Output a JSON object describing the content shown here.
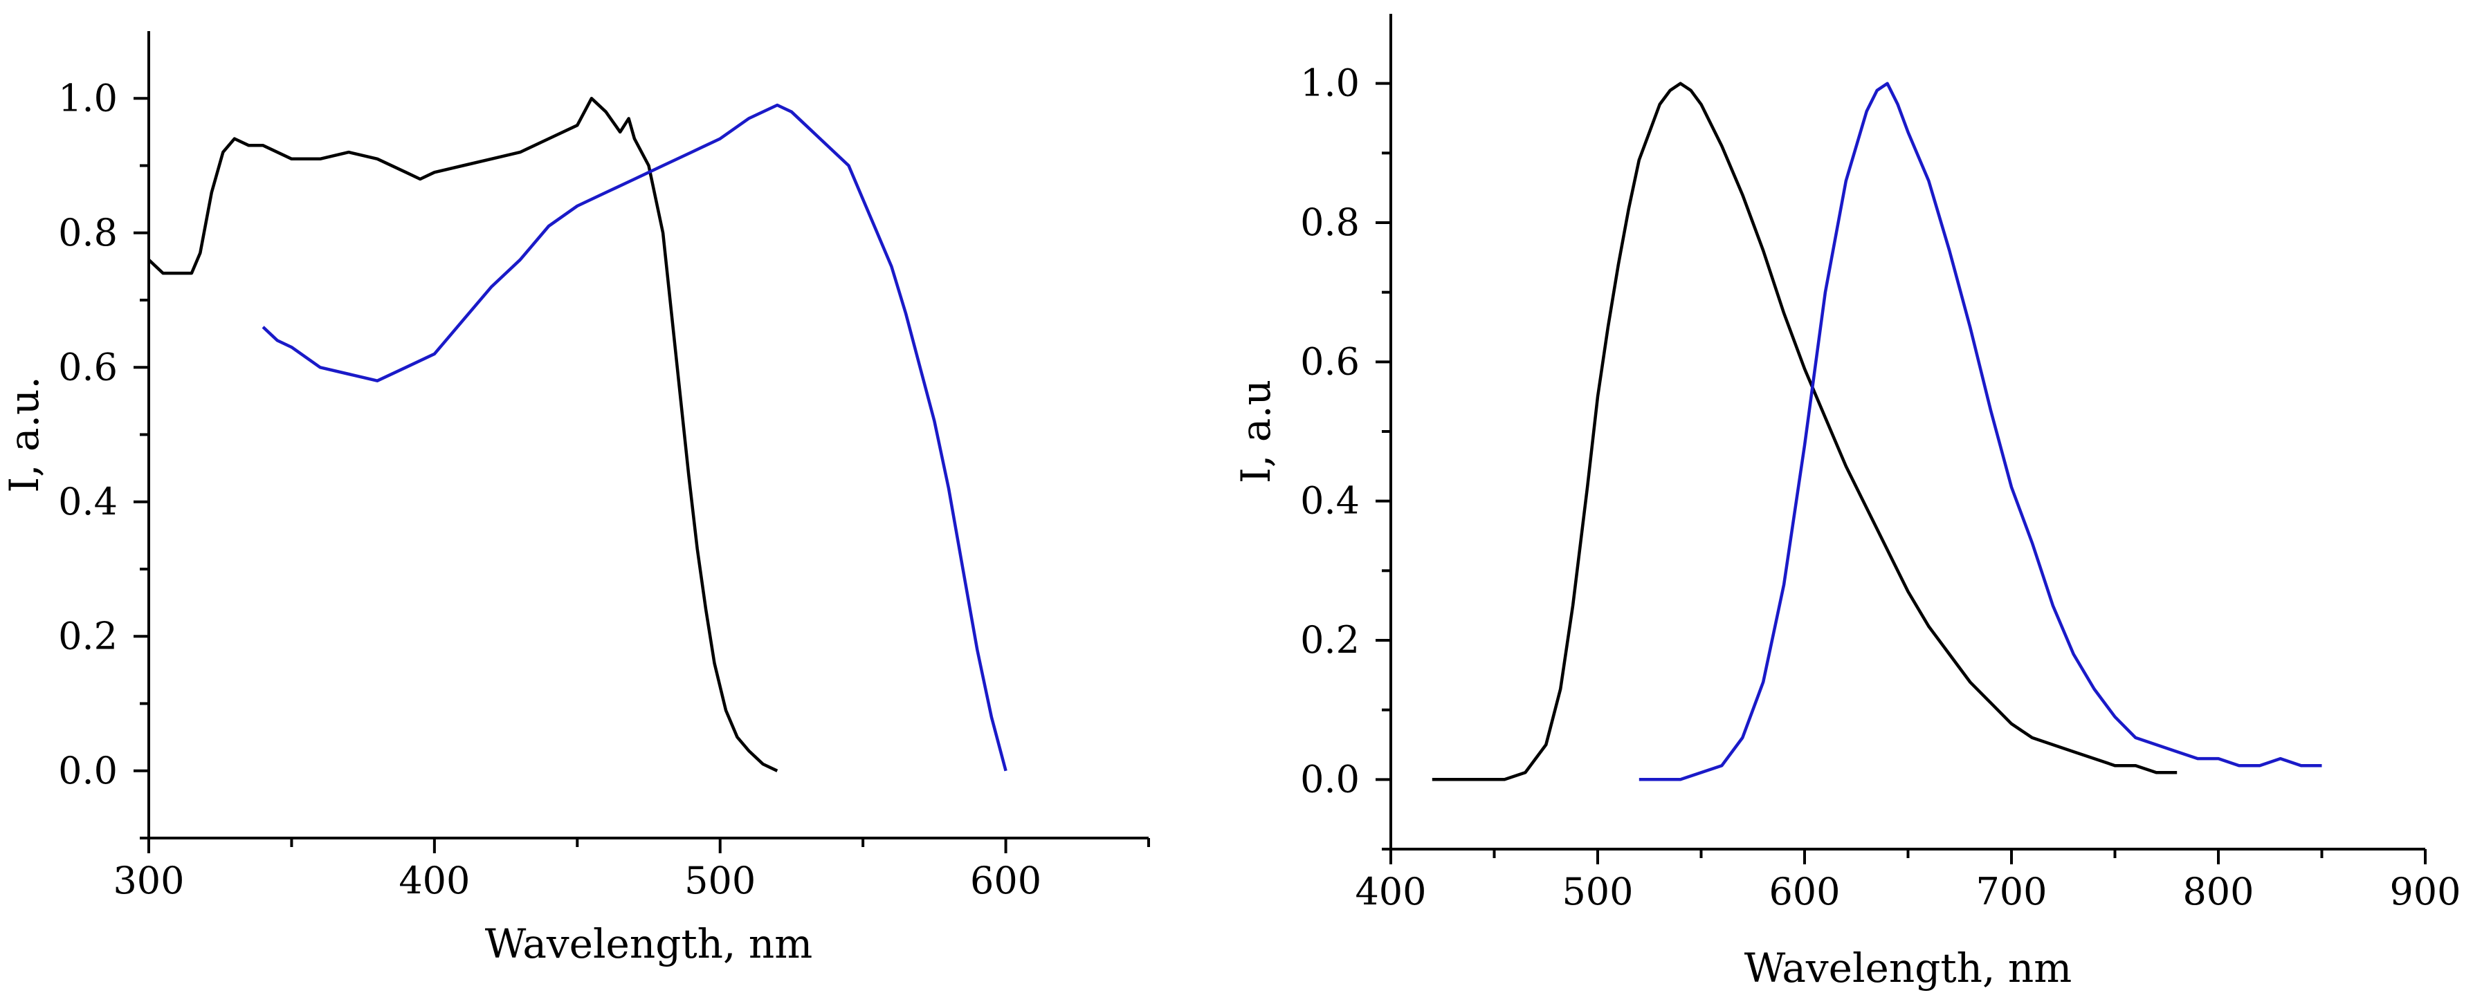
{
  "chart_data": [
    {
      "type": "line",
      "title": "",
      "xlabel": "Wavelength, nm",
      "ylabel": "I, a.u.",
      "xlim": [
        300,
        650
      ],
      "ylim": [
        -0.1,
        1.1
      ],
      "xticks": [
        300,
        400,
        500,
        600
      ],
      "xtick_labels": [
        "300",
        "400",
        "500",
        "600"
      ],
      "yticks": [
        0.0,
        0.2,
        0.4,
        0.6,
        0.8,
        1.0
      ],
      "ytick_labels": [
        "0.0",
        "0.2",
        "0.4",
        "0.6",
        "0.8",
        "1.0"
      ],
      "grid": false,
      "series": [
        {
          "name": "black",
          "color": "#000000",
          "points": [
            [
              300,
              0.76
            ],
            [
              305,
              0.74
            ],
            [
              310,
              0.74
            ],
            [
              315,
              0.74
            ],
            [
              318,
              0.77
            ],
            [
              322,
              0.86
            ],
            [
              326,
              0.92
            ],
            [
              330,
              0.94
            ],
            [
              335,
              0.93
            ],
            [
              340,
              0.93
            ],
            [
              350,
              0.91
            ],
            [
              360,
              0.91
            ],
            [
              370,
              0.92
            ],
            [
              380,
              0.91
            ],
            [
              390,
              0.89
            ],
            [
              395,
              0.88
            ],
            [
              400,
              0.89
            ],
            [
              410,
              0.9
            ],
            [
              420,
              0.91
            ],
            [
              430,
              0.92
            ],
            [
              440,
              0.94
            ],
            [
              450,
              0.96
            ],
            [
              455,
              1.0
            ],
            [
              460,
              0.98
            ],
            [
              465,
              0.95
            ],
            [
              468,
              0.97
            ],
            [
              470,
              0.94
            ],
            [
              475,
              0.9
            ],
            [
              480,
              0.8
            ],
            [
              483,
              0.68
            ],
            [
              486,
              0.56
            ],
            [
              489,
              0.44
            ],
            [
              492,
              0.33
            ],
            [
              495,
              0.24
            ],
            [
              498,
              0.16
            ],
            [
              502,
              0.09
            ],
            [
              506,
              0.05
            ],
            [
              510,
              0.03
            ],
            [
              515,
              0.01
            ],
            [
              520,
              0.0
            ]
          ]
        },
        {
          "name": "blue",
          "color": "#1a1ac8",
          "points": [
            [
              340,
              0.66
            ],
            [
              345,
              0.64
            ],
            [
              350,
              0.63
            ],
            [
              360,
              0.6
            ],
            [
              370,
              0.59
            ],
            [
              380,
              0.58
            ],
            [
              390,
              0.6
            ],
            [
              400,
              0.62
            ],
            [
              410,
              0.67
            ],
            [
              420,
              0.72
            ],
            [
              430,
              0.76
            ],
            [
              440,
              0.81
            ],
            [
              450,
              0.84
            ],
            [
              460,
              0.86
            ],
            [
              470,
              0.88
            ],
            [
              480,
              0.9
            ],
            [
              490,
              0.92
            ],
            [
              500,
              0.94
            ],
            [
              510,
              0.97
            ],
            [
              520,
              0.99
            ],
            [
              525,
              0.98
            ],
            [
              530,
              0.96
            ],
            [
              535,
              0.94
            ],
            [
              540,
              0.92
            ],
            [
              545,
              0.9
            ],
            [
              550,
              0.85
            ],
            [
              555,
              0.8
            ],
            [
              560,
              0.75
            ],
            [
              565,
              0.68
            ],
            [
              570,
              0.6
            ],
            [
              575,
              0.52
            ],
            [
              580,
              0.42
            ],
            [
              585,
              0.3
            ],
            [
              590,
              0.18
            ],
            [
              595,
              0.08
            ],
            [
              600,
              0.0
            ]
          ]
        }
      ]
    },
    {
      "type": "line",
      "title": "",
      "xlabel": "Wavelength, nm",
      "ylabel": "I, a.u",
      "xlim": [
        400,
        900
      ],
      "ylim": [
        -0.1,
        1.1
      ],
      "xticks": [
        400,
        500,
        600,
        700,
        800,
        900
      ],
      "xtick_labels": [
        "400",
        "500",
        "600",
        "700",
        "800",
        "900"
      ],
      "yticks": [
        0.0,
        0.2,
        0.4,
        0.6,
        0.8,
        1.0
      ],
      "ytick_labels": [
        "0.0",
        "0.2",
        "0.4",
        "0.6",
        "0.8",
        "1.0"
      ],
      "grid": false,
      "series": [
        {
          "name": "black",
          "color": "#000000",
          "points": [
            [
              420,
              0.0
            ],
            [
              440,
              0.0
            ],
            [
              455,
              0.0
            ],
            [
              465,
              0.01
            ],
            [
              475,
              0.05
            ],
            [
              482,
              0.13
            ],
            [
              488,
              0.25
            ],
            [
              495,
              0.42
            ],
            [
              500,
              0.55
            ],
            [
              505,
              0.65
            ],
            [
              510,
              0.74
            ],
            [
              515,
              0.82
            ],
            [
              520,
              0.89
            ],
            [
              525,
              0.93
            ],
            [
              530,
              0.97
            ],
            [
              535,
              0.99
            ],
            [
              540,
              1.0
            ],
            [
              545,
              0.99
            ],
            [
              550,
              0.97
            ],
            [
              560,
              0.91
            ],
            [
              570,
              0.84
            ],
            [
              580,
              0.76
            ],
            [
              590,
              0.67
            ],
            [
              600,
              0.59
            ],
            [
              610,
              0.52
            ],
            [
              620,
              0.45
            ],
            [
              630,
              0.39
            ],
            [
              640,
              0.33
            ],
            [
              650,
              0.27
            ],
            [
              660,
              0.22
            ],
            [
              670,
              0.18
            ],
            [
              680,
              0.14
            ],
            [
              690,
              0.11
            ],
            [
              700,
              0.08
            ],
            [
              710,
              0.06
            ],
            [
              720,
              0.05
            ],
            [
              730,
              0.04
            ],
            [
              740,
              0.03
            ],
            [
              750,
              0.02
            ],
            [
              760,
              0.02
            ],
            [
              770,
              0.01
            ],
            [
              780,
              0.01
            ]
          ]
        },
        {
          "name": "blue",
          "color": "#1a1ac8",
          "points": [
            [
              520,
              0.0
            ],
            [
              540,
              0.0
            ],
            [
              550,
              0.01
            ],
            [
              560,
              0.02
            ],
            [
              570,
              0.06
            ],
            [
              580,
              0.14
            ],
            [
              590,
              0.28
            ],
            [
              600,
              0.48
            ],
            [
              610,
              0.7
            ],
            [
              620,
              0.86
            ],
            [
              630,
              0.96
            ],
            [
              635,
              0.99
            ],
            [
              640,
              1.0
            ],
            [
              645,
              0.97
            ],
            [
              650,
              0.93
            ],
            [
              660,
              0.86
            ],
            [
              670,
              0.76
            ],
            [
              680,
              0.65
            ],
            [
              690,
              0.53
            ],
            [
              700,
              0.42
            ],
            [
              710,
              0.34
            ],
            [
              720,
              0.25
            ],
            [
              730,
              0.18
            ],
            [
              740,
              0.13
            ],
            [
              750,
              0.09
            ],
            [
              760,
              0.06
            ],
            [
              770,
              0.05
            ],
            [
              780,
              0.04
            ],
            [
              790,
              0.03
            ],
            [
              800,
              0.03
            ],
            [
              810,
              0.02
            ],
            [
              820,
              0.02
            ],
            [
              830,
              0.03
            ],
            [
              840,
              0.02
            ],
            [
              850,
              0.02
            ]
          ]
        }
      ]
    }
  ]
}
